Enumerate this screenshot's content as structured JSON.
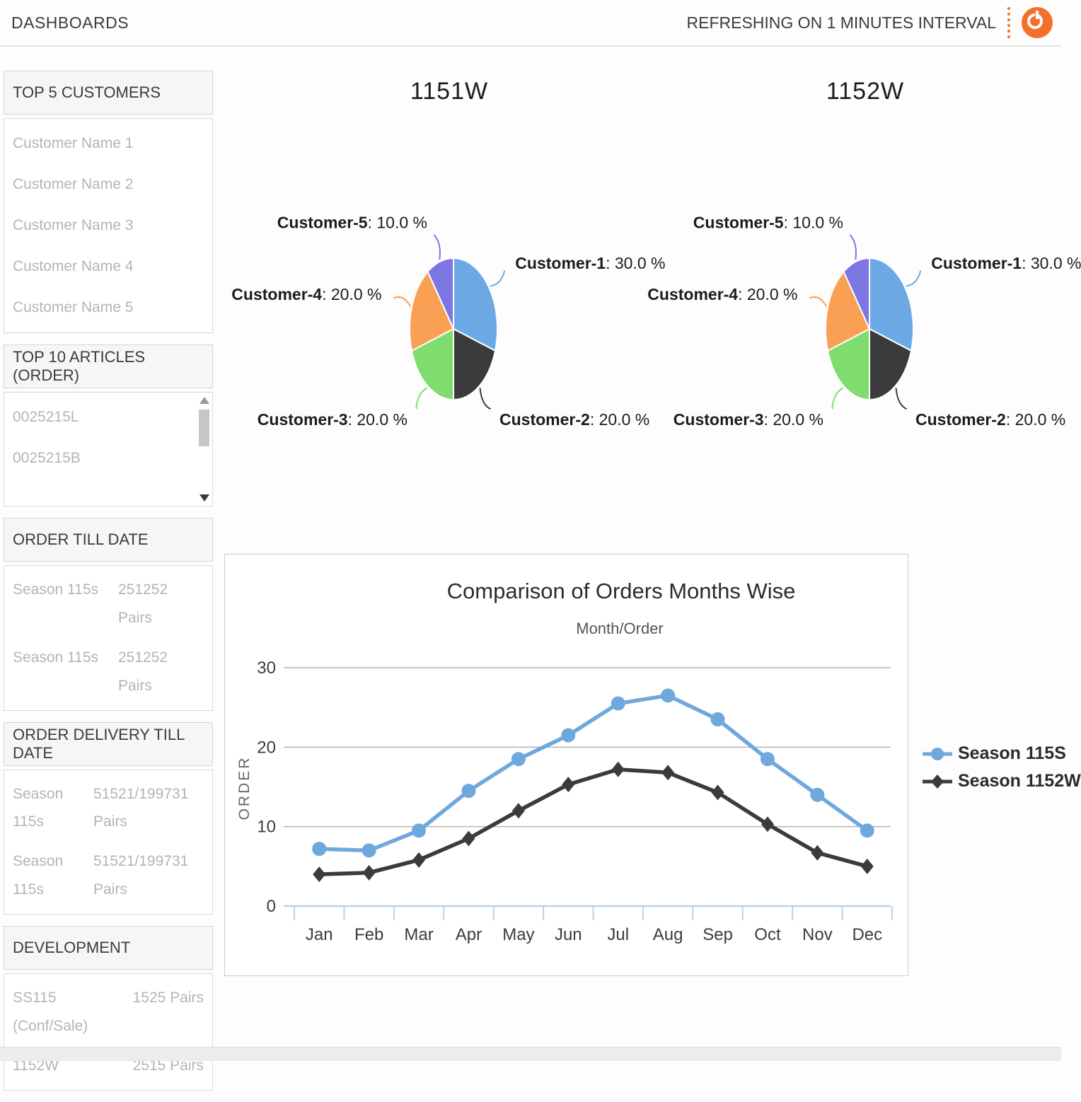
{
  "header": {
    "title": "DASHBOARDS",
    "refresh_text": "REFRESHING ON 1 MINUTES INTERVAL",
    "power_icon_color": "#f3702a"
  },
  "sidebar": {
    "top5_customers": {
      "title": "TOP 5 CUSTOMERS",
      "items": [
        "Customer Name 1",
        "Customer Name 2",
        "Customer Name 3",
        "Customer Name 4",
        "Customer Name 5"
      ]
    },
    "top10_articles": {
      "title": "TOP 10 ARTICLES (ORDER)",
      "items": [
        "0025215L",
        "0025215B"
      ]
    },
    "order_till_date": {
      "title": "ORDER TILL DATE",
      "rows": [
        {
          "label": "Season 115s",
          "value": "251252 Pairs"
        },
        {
          "label": "Season 115s",
          "value": "251252 Pairs"
        }
      ]
    },
    "order_delivery_till_date": {
      "title": "ORDER DELIVERY TILL DATE",
      "rows": [
        {
          "label": "Season 115s",
          "value": "51521/199731 Pairs"
        },
        {
          "label": "Season 115s",
          "value": "51521/199731 Pairs"
        }
      ]
    },
    "development": {
      "title": "DEVELOPMENT",
      "rows": [
        {
          "label": "SS115 (Conf/Sale)",
          "value": "1525 Pairs"
        },
        {
          "label": "1152W",
          "value": "2515 Pairs"
        }
      ]
    }
  },
  "chart_data": [
    {
      "type": "pie",
      "title": "1151W",
      "labels": [
        "Customer-1",
        "Customer-2",
        "Customer-3",
        "Customer-4",
        "Customer-5"
      ],
      "values": [
        30.0,
        20.0,
        20.0,
        20.0,
        10.0
      ],
      "value_suffix": " %",
      "colors": [
        "#6ca9e4",
        "#3b3b3d",
        "#7edd6c",
        "#f9a054",
        "#7b76e2"
      ],
      "legend_position": "none"
    },
    {
      "type": "pie",
      "title": "1152W",
      "labels": [
        "Customer-1",
        "Customer-2",
        "Customer-3",
        "Customer-4",
        "Customer-5"
      ],
      "values": [
        30.0,
        20.0,
        20.0,
        20.0,
        10.0
      ],
      "value_suffix": " %",
      "colors": [
        "#6ca9e4",
        "#3b3b3d",
        "#7edd6c",
        "#f9a054",
        "#7b76e2"
      ],
      "legend_position": "none"
    },
    {
      "type": "line",
      "title": "Comparison of Orders Months Wise",
      "subtitle": "Month/Order",
      "xlabel": "",
      "ylabel": "ORDER",
      "categories": [
        "Jan",
        "Feb",
        "Mar",
        "Apr",
        "May",
        "Jun",
        "Jul",
        "Aug",
        "Sep",
        "Oct",
        "Nov",
        "Dec"
      ],
      "series": [
        {
          "name": "Season 115S",
          "color": "#6fa8dc",
          "marker": "circle",
          "values": [
            7.2,
            7.0,
            9.5,
            14.5,
            18.5,
            21.5,
            25.5,
            26.5,
            23.5,
            18.5,
            14.0,
            9.5
          ]
        },
        {
          "name": "Season 1152W",
          "color": "#3b3b3d",
          "marker": "diamond",
          "values": [
            4.0,
            4.2,
            5.8,
            8.5,
            12.0,
            15.3,
            17.2,
            16.8,
            14.3,
            10.3,
            6.7,
            5.0
          ]
        }
      ],
      "ylim": [
        0,
        30
      ],
      "yticks": [
        0,
        10,
        20,
        30
      ],
      "grid": true,
      "legend_position": "right"
    }
  ]
}
